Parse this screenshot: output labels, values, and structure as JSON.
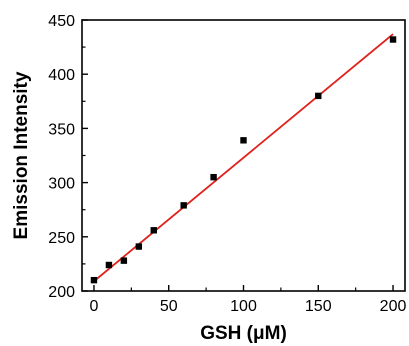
{
  "chart_data": {
    "type": "scatter",
    "title": "",
    "xlabel": "GSH (μM)",
    "ylabel": "Emission Intensity",
    "xlim": [
      -8,
      208
    ],
    "ylim": [
      200,
      450
    ],
    "xticks": [
      0,
      50,
      100,
      150,
      200
    ],
    "yticks": [
      200,
      250,
      300,
      350,
      400,
      450
    ],
    "grid": false,
    "legend": "none",
    "series": [
      {
        "x": [
          0,
          10,
          20,
          30,
          40,
          60,
          80,
          100,
          150,
          200
        ],
        "y": [
          210,
          224,
          228,
          241,
          256,
          279,
          305,
          339,
          380,
          432
        ],
        "marker": "square",
        "color": "#000000"
      }
    ],
    "fit_line": {
      "x": [
        0,
        200
      ],
      "y": [
        209,
        437
      ],
      "color": "#e0221c"
    }
  }
}
